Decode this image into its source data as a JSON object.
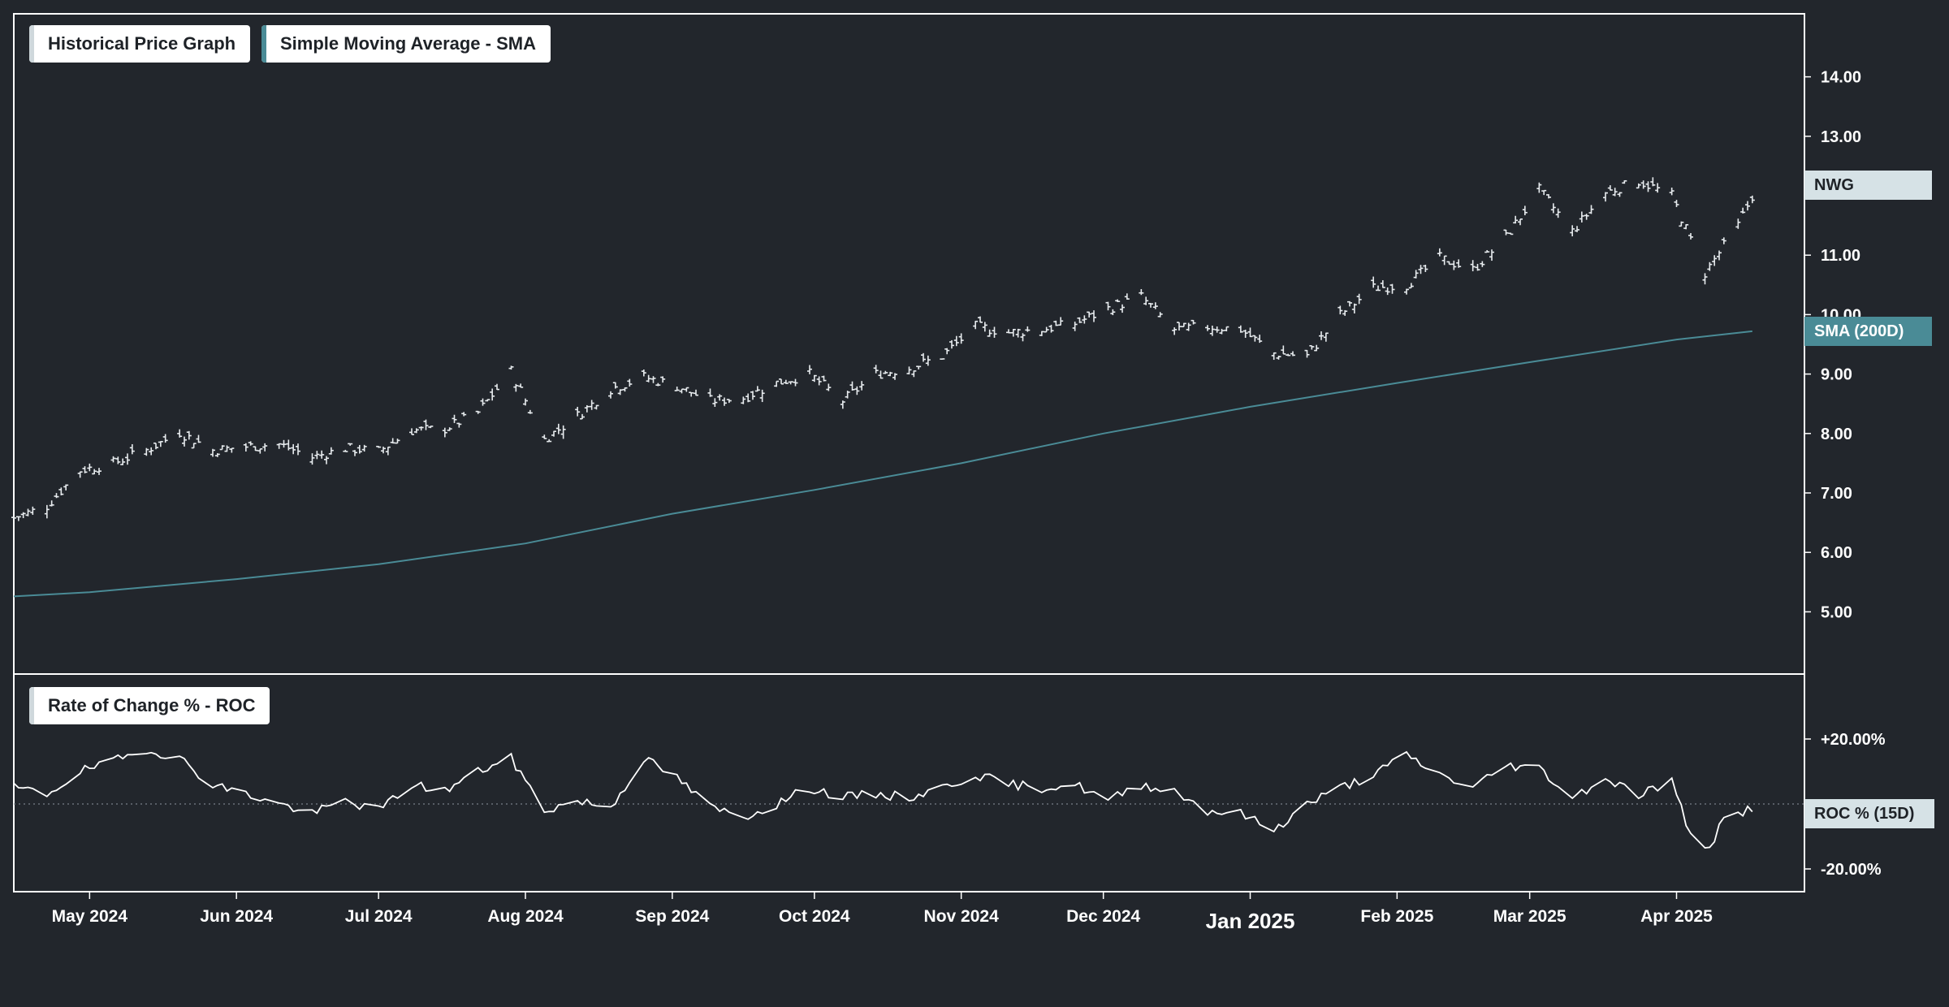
{
  "legends": {
    "price": "Historical Price Graph",
    "sma": "Simple Moving Average - SMA",
    "roc": "Rate of Change % - ROC"
  },
  "tags": {
    "price": "NWG",
    "sma": "SMA (200D)",
    "roc": "ROC % (15D)"
  },
  "colors": {
    "background": "#22262c",
    "axis": "#ffffff",
    "price_bars": "#e8ecef",
    "sma_line": "#4a8b96",
    "sma_tag": "#4a8b96",
    "price_tag": "#d6e2e6",
    "roc_line": "#ffffff",
    "zero_line": "#7a8088"
  },
  "chart_data": [
    {
      "type": "ohlc",
      "name": "NWG",
      "y_axis_side": "right",
      "ylim": [
        4.5,
        14.5
      ],
      "y_ticks": [
        "5.00",
        "6.00",
        "7.00",
        "8.00",
        "9.00",
        "10.00",
        "11.00",
        "13.00",
        "14.00"
      ],
      "x_range": [
        "2024-04-15",
        "2025-04-28"
      ],
      "closes": [
        {
          "date": "2024-04-15",
          "close": 6.58
        },
        {
          "date": "2024-04-22",
          "close": 6.78
        },
        {
          "date": "2024-04-29",
          "close": 7.38
        },
        {
          "date": "2024-05-06",
          "close": 7.5
        },
        {
          "date": "2024-05-13",
          "close": 7.72
        },
        {
          "date": "2024-05-20",
          "close": 8.02
        },
        {
          "date": "2024-05-27",
          "close": 7.72
        },
        {
          "date": "2024-06-03",
          "close": 7.78
        },
        {
          "date": "2024-06-10",
          "close": 7.82
        },
        {
          "date": "2024-06-17",
          "close": 7.6
        },
        {
          "date": "2024-06-24",
          "close": 7.75
        },
        {
          "date": "2024-07-01",
          "close": 7.7
        },
        {
          "date": "2024-07-08",
          "close": 8.05
        },
        {
          "date": "2024-07-15",
          "close": 8.08
        },
        {
          "date": "2024-07-22",
          "close": 8.35
        },
        {
          "date": "2024-07-29",
          "close": 9.05
        },
        {
          "date": "2024-08-05",
          "close": 7.9
        },
        {
          "date": "2024-08-12",
          "close": 8.3
        },
        {
          "date": "2024-08-19",
          "close": 8.75
        },
        {
          "date": "2024-08-26",
          "close": 8.95
        },
        {
          "date": "2024-09-02",
          "close": 8.8
        },
        {
          "date": "2024-09-09",
          "close": 8.55
        },
        {
          "date": "2024-09-16",
          "close": 8.6
        },
        {
          "date": "2024-09-23",
          "close": 8.85
        },
        {
          "date": "2024-09-30",
          "close": 9.0
        },
        {
          "date": "2024-10-07",
          "close": 8.55
        },
        {
          "date": "2024-10-14",
          "close": 9.0
        },
        {
          "date": "2024-10-21",
          "close": 9.1
        },
        {
          "date": "2024-10-28",
          "close": 9.3
        },
        {
          "date": "2024-11-04",
          "close": 9.8
        },
        {
          "date": "2024-11-11",
          "close": 9.7
        },
        {
          "date": "2024-11-18",
          "close": 9.75
        },
        {
          "date": "2024-11-25",
          "close": 9.85
        },
        {
          "date": "2024-12-02",
          "close": 10.1
        },
        {
          "date": "2024-12-09",
          "close": 10.3
        },
        {
          "date": "2024-12-16",
          "close": 9.75
        },
        {
          "date": "2024-12-23",
          "close": 9.8
        },
        {
          "date": "2024-12-30",
          "close": 9.75
        },
        {
          "date": "2025-01-06",
          "close": 9.35
        },
        {
          "date": "2025-01-13",
          "close": 9.3
        },
        {
          "date": "2025-01-20",
          "close": 10.0
        },
        {
          "date": "2025-01-27",
          "close": 10.45
        },
        {
          "date": "2025-02-03",
          "close": 10.5
        },
        {
          "date": "2025-02-10",
          "close": 10.95
        },
        {
          "date": "2025-02-17",
          "close": 10.75
        },
        {
          "date": "2025-02-24",
          "close": 11.3
        },
        {
          "date": "2025-03-03",
          "close": 12.1
        },
        {
          "date": "2025-03-10",
          "close": 11.4
        },
        {
          "date": "2025-03-17",
          "close": 12.05
        },
        {
          "date": "2025-03-24",
          "close": 12.25
        },
        {
          "date": "2025-03-31",
          "close": 12.0
        },
        {
          "date": "2025-04-07",
          "close": 10.7
        },
        {
          "date": "2025-04-14",
          "close": 11.5
        },
        {
          "date": "2025-04-17",
          "close": 12.0
        }
      ]
    },
    {
      "type": "line",
      "name": "SMA (200D)",
      "points": [
        {
          "date": "2024-04-15",
          "value": 5.26
        },
        {
          "date": "2024-05-01",
          "value": 5.33
        },
        {
          "date": "2024-06-01",
          "value": 5.55
        },
        {
          "date": "2024-07-01",
          "value": 5.8
        },
        {
          "date": "2024-08-01",
          "value": 6.15
        },
        {
          "date": "2024-09-01",
          "value": 6.65
        },
        {
          "date": "2024-10-01",
          "value": 7.05
        },
        {
          "date": "2024-11-01",
          "value": 7.5
        },
        {
          "date": "2024-12-01",
          "value": 8.0
        },
        {
          "date": "2025-01-01",
          "value": 8.45
        },
        {
          "date": "2025-02-01",
          "value": 8.85
        },
        {
          "date": "2025-03-01",
          "value": 9.2
        },
        {
          "date": "2025-04-01",
          "value": 9.58
        },
        {
          "date": "2025-04-17",
          "value": 9.72
        }
      ]
    },
    {
      "type": "line",
      "name": "ROC % (15D)",
      "y_axis_side": "right",
      "ylim": [
        -25,
        30
      ],
      "y_ticks": [
        "+20.00%",
        "-20.00%"
      ],
      "points": [
        {
          "date": "2024-04-15",
          "value": 5.0
        },
        {
          "date": "2024-04-22",
          "value": 3.0
        },
        {
          "date": "2024-04-29",
          "value": 10.0
        },
        {
          "date": "2024-05-06",
          "value": 13.0
        },
        {
          "date": "2024-05-13",
          "value": 17.0
        },
        {
          "date": "2024-05-20",
          "value": 14.0
        },
        {
          "date": "2024-05-27",
          "value": 6.0
        },
        {
          "date": "2024-06-03",
          "value": 3.0
        },
        {
          "date": "2024-06-10",
          "value": 0.0
        },
        {
          "date": "2024-06-17",
          "value": -3.0
        },
        {
          "date": "2024-06-24",
          "value": 1.0
        },
        {
          "date": "2024-07-01",
          "value": -2.0
        },
        {
          "date": "2024-07-08",
          "value": 6.0
        },
        {
          "date": "2024-07-15",
          "value": 4.0
        },
        {
          "date": "2024-07-22",
          "value": 10.0
        },
        {
          "date": "2024-07-29",
          "value": 14.0
        },
        {
          "date": "2024-08-05",
          "value": -2.0
        },
        {
          "date": "2024-08-12",
          "value": 1.0
        },
        {
          "date": "2024-08-19",
          "value": -1.0
        },
        {
          "date": "2024-08-26",
          "value": 14.0
        },
        {
          "date": "2024-09-02",
          "value": 8.0
        },
        {
          "date": "2024-09-09",
          "value": -1.0
        },
        {
          "date": "2024-09-16",
          "value": -4.0
        },
        {
          "date": "2024-09-23",
          "value": 0.0
        },
        {
          "date": "2024-09-30",
          "value": 5.0
        },
        {
          "date": "2024-10-07",
          "value": 2.0
        },
        {
          "date": "2024-10-14",
          "value": 3.0
        },
        {
          "date": "2024-10-21",
          "value": 2.0
        },
        {
          "date": "2024-10-28",
          "value": 5.0
        },
        {
          "date": "2024-11-04",
          "value": 9.0
        },
        {
          "date": "2024-11-11",
          "value": 6.0
        },
        {
          "date": "2024-11-18",
          "value": 5.0
        },
        {
          "date": "2024-11-25",
          "value": 6.0
        },
        {
          "date": "2024-12-02",
          "value": 1.0
        },
        {
          "date": "2024-12-09",
          "value": 6.0
        },
        {
          "date": "2024-12-16",
          "value": 4.0
        },
        {
          "date": "2024-12-23",
          "value": -2.0
        },
        {
          "date": "2024-12-30",
          "value": -3.0
        },
        {
          "date": "2025-01-06",
          "value": -8.0
        },
        {
          "date": "2025-01-13",
          "value": 0.0
        },
        {
          "date": "2025-01-20",
          "value": 5.0
        },
        {
          "date": "2025-01-27",
          "value": 9.0
        },
        {
          "date": "2025-02-03",
          "value": 15.0
        },
        {
          "date": "2025-02-10",
          "value": 9.0
        },
        {
          "date": "2025-02-17",
          "value": 5.0
        },
        {
          "date": "2025-02-24",
          "value": 12.0
        },
        {
          "date": "2025-03-03",
          "value": 11.0
        },
        {
          "date": "2025-03-10",
          "value": 2.0
        },
        {
          "date": "2025-03-17",
          "value": 8.0
        },
        {
          "date": "2025-03-24",
          "value": 3.0
        },
        {
          "date": "2025-03-31",
          "value": 7.0
        },
        {
          "date": "2025-04-04",
          "value": -10.0
        },
        {
          "date": "2025-04-08",
          "value": -13.0
        },
        {
          "date": "2025-04-11",
          "value": -5.0
        },
        {
          "date": "2025-04-17",
          "value": -1.0
        }
      ]
    }
  ],
  "x_ticks": [
    {
      "date": "2024-05-01",
      "label": "May 2024",
      "major": false
    },
    {
      "date": "2024-06-01",
      "label": "Jun 2024",
      "major": false
    },
    {
      "date": "2024-07-01",
      "label": "Jul 2024",
      "major": false
    },
    {
      "date": "2024-08-01",
      "label": "Aug 2024",
      "major": false
    },
    {
      "date": "2024-09-01",
      "label": "Sep 2024",
      "major": false
    },
    {
      "date": "2024-10-01",
      "label": "Oct 2024",
      "major": false
    },
    {
      "date": "2024-11-01",
      "label": "Nov 2024",
      "major": false
    },
    {
      "date": "2024-12-01",
      "label": "Dec 2024",
      "major": false
    },
    {
      "date": "2025-01-01",
      "label": "Jan 2025",
      "major": true
    },
    {
      "date": "2025-02-01",
      "label": "Feb 2025",
      "major": false
    },
    {
      "date": "2025-03-01",
      "label": "Mar 2025",
      "major": false
    },
    {
      "date": "2025-04-01",
      "label": "Apr 2025",
      "major": false
    }
  ]
}
